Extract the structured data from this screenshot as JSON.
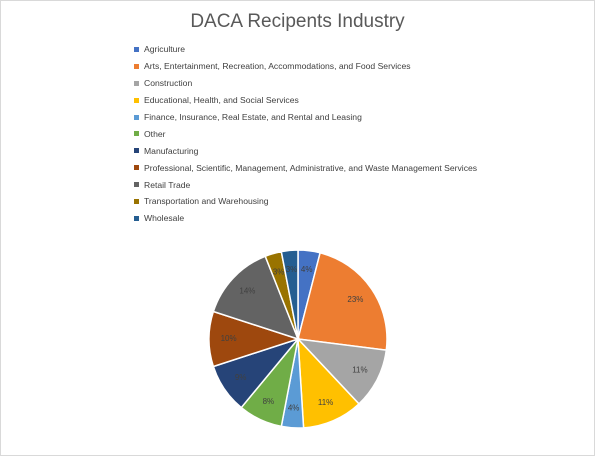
{
  "chart_data": {
    "type": "pie",
    "title": "DACA Recipents Industry",
    "legend_position": "top",
    "categories": [
      "Agriculture",
      "Arts, Entertainment, Recreation, Accommodations, and Food Services",
      "Construction",
      "Educational, Health, and Social Services",
      "Finance, Insurance, Real Estate, and Rental and Leasing",
      "Other",
      "Manufacturing",
      "Professional, Scientific, Management, Administrative, and Waste Management Services",
      "Retail Trade",
      "Transportation and Warehousing",
      "Wholesale"
    ],
    "values": [
      4,
      23,
      11,
      11,
      4,
      8,
      9,
      10,
      14,
      3,
      3
    ],
    "labels": [
      "4%",
      "23%",
      "11%",
      "11%",
      "4%",
      "8%",
      "9%",
      "10%",
      "14%",
      "3%",
      "3%"
    ],
    "colors": [
      "#4472c4",
      "#ed7d31",
      "#a5a5a5",
      "#ffc000",
      "#5b9bd5",
      "#70ad47",
      "#264478",
      "#9e480e",
      "#636363",
      "#997300",
      "#255e91"
    ]
  }
}
